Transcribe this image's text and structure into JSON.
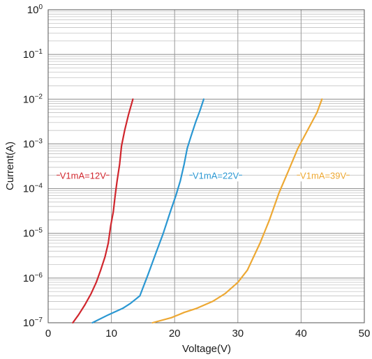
{
  "chart_data": {
    "type": "line",
    "title": "",
    "xlabel": "Voltage(V)",
    "ylabel": "Current(A)",
    "xlim": [
      0,
      50
    ],
    "ylim": [
      1e-07,
      1
    ],
    "yscale": "log",
    "grid": true,
    "x_ticks": [
      {
        "value": 0,
        "label": "0"
      },
      {
        "value": 10,
        "label": "10"
      },
      {
        "value": 20,
        "label": "20"
      },
      {
        "value": 30,
        "label": "30"
      },
      {
        "value": 40,
        "label": "40"
      },
      {
        "value": 50,
        "label": "50"
      }
    ],
    "y_ticks": [
      {
        "value": 1e-07,
        "base": "10",
        "exp": "−7"
      },
      {
        "value": 1e-06,
        "base": "10",
        "exp": "−6"
      },
      {
        "value": 1e-05,
        "base": "10",
        "exp": "−5"
      },
      {
        "value": 0.0001,
        "base": "10",
        "exp": "−4"
      },
      {
        "value": 0.001,
        "base": "10",
        "exp": "−3"
      },
      {
        "value": 0.01,
        "base": "10",
        "exp": "−2"
      },
      {
        "value": 0.1,
        "base": "10",
        "exp": "−1"
      },
      {
        "value": 1,
        "base": "10",
        "exp": "0"
      }
    ],
    "series": [
      {
        "name": "V1mA=12V",
        "color": "#d0262d",
        "label_x": 5.5,
        "label_y": 0.0002,
        "x": [
          3.9,
          4.8,
          5.8,
          6.8,
          7.6,
          8.3,
          9.0,
          9.5,
          9.9,
          10.3,
          10.6,
          10.9,
          11.3,
          11.6,
          12.1,
          12.7,
          13.4
        ],
        "y": [
          1e-07,
          1.5e-07,
          2.5e-07,
          4.5e-07,
          8e-07,
          1.5e-06,
          3e-06,
          6e-06,
          1.5e-05,
          3e-05,
          7e-05,
          0.00015,
          0.00035,
          0.0009,
          0.002,
          0.0045,
          0.01
        ]
      },
      {
        "name": "V1mA=22V",
        "color": "#2a97d2",
        "label_x": 26.5,
        "label_y": 0.0002,
        "x": [
          7.0,
          9.5,
          11.8,
          13.0,
          14.5,
          15.8,
          17.0,
          18.2,
          19.3,
          20.2,
          20.9,
          21.5,
          22.0,
          22.6,
          23.3,
          24.0,
          24.6
        ],
        "y": [
          1e-07,
          1.5e-07,
          2.1e-07,
          2.7e-07,
          4e-07,
          1.2e-06,
          3.5e-06,
          1e-05,
          3e-05,
          7e-05,
          0.00015,
          0.00035,
          0.0008,
          0.0015,
          0.003,
          0.0055,
          0.01
        ]
      },
      {
        "name": "V1mA=39V",
        "color": "#eda833",
        "label_x": 43.5,
        "label_y": 0.0002,
        "x": [
          16.5,
          19.5,
          21.5,
          23.5,
          26.0,
          28.0,
          30.0,
          31.5,
          33.5,
          35.0,
          36.5,
          38.0,
          39.5,
          41.0,
          42.5,
          43.3
        ],
        "y": [
          1e-07,
          1.3e-07,
          1.7e-07,
          2.1e-07,
          3e-07,
          4.5e-07,
          8e-07,
          1.5e-06,
          6e-06,
          2e-05,
          8e-05,
          0.00025,
          0.0008,
          0.002,
          0.005,
          0.01
        ]
      }
    ]
  }
}
